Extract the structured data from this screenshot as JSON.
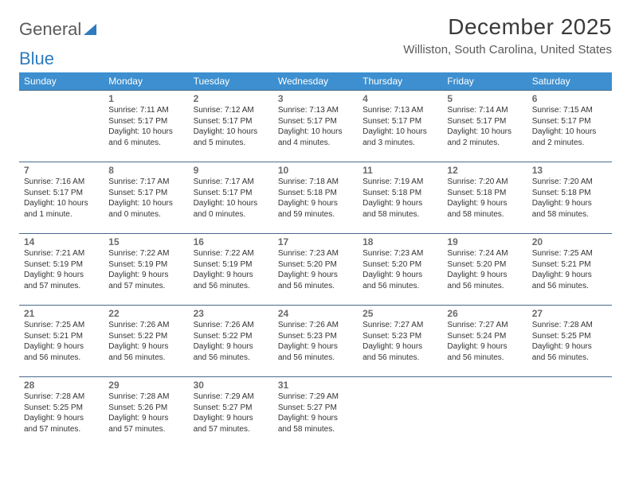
{
  "brand": {
    "part1": "General",
    "part2": "Blue"
  },
  "title": "December 2025",
  "location": "Williston, South Carolina, United States",
  "colors": {
    "header_bg": "#3d8fcf",
    "header_text": "#ffffff",
    "row_border": "#4a6a8a",
    "daynum": "#6a6a6a",
    "body_text": "#333333",
    "brand_gray": "#5a5a5a",
    "brand_blue": "#2f7bbf"
  },
  "weekdays": [
    "Sunday",
    "Monday",
    "Tuesday",
    "Wednesday",
    "Thursday",
    "Friday",
    "Saturday"
  ],
  "weeks": [
    [
      null,
      {
        "n": "1",
        "sr": "7:11 AM",
        "ss": "5:17 PM",
        "dl": "10 hours and 6 minutes."
      },
      {
        "n": "2",
        "sr": "7:12 AM",
        "ss": "5:17 PM",
        "dl": "10 hours and 5 minutes."
      },
      {
        "n": "3",
        "sr": "7:13 AM",
        "ss": "5:17 PM",
        "dl": "10 hours and 4 minutes."
      },
      {
        "n": "4",
        "sr": "7:13 AM",
        "ss": "5:17 PM",
        "dl": "10 hours and 3 minutes."
      },
      {
        "n": "5",
        "sr": "7:14 AM",
        "ss": "5:17 PM",
        "dl": "10 hours and 2 minutes."
      },
      {
        "n": "6",
        "sr": "7:15 AM",
        "ss": "5:17 PM",
        "dl": "10 hours and 2 minutes."
      }
    ],
    [
      {
        "n": "7",
        "sr": "7:16 AM",
        "ss": "5:17 PM",
        "dl": "10 hours and 1 minute."
      },
      {
        "n": "8",
        "sr": "7:17 AM",
        "ss": "5:17 PM",
        "dl": "10 hours and 0 minutes."
      },
      {
        "n": "9",
        "sr": "7:17 AM",
        "ss": "5:17 PM",
        "dl": "10 hours and 0 minutes."
      },
      {
        "n": "10",
        "sr": "7:18 AM",
        "ss": "5:18 PM",
        "dl": "9 hours and 59 minutes."
      },
      {
        "n": "11",
        "sr": "7:19 AM",
        "ss": "5:18 PM",
        "dl": "9 hours and 58 minutes."
      },
      {
        "n": "12",
        "sr": "7:20 AM",
        "ss": "5:18 PM",
        "dl": "9 hours and 58 minutes."
      },
      {
        "n": "13",
        "sr": "7:20 AM",
        "ss": "5:18 PM",
        "dl": "9 hours and 58 minutes."
      }
    ],
    [
      {
        "n": "14",
        "sr": "7:21 AM",
        "ss": "5:19 PM",
        "dl": "9 hours and 57 minutes."
      },
      {
        "n": "15",
        "sr": "7:22 AM",
        "ss": "5:19 PM",
        "dl": "9 hours and 57 minutes."
      },
      {
        "n": "16",
        "sr": "7:22 AM",
        "ss": "5:19 PM",
        "dl": "9 hours and 56 minutes."
      },
      {
        "n": "17",
        "sr": "7:23 AM",
        "ss": "5:20 PM",
        "dl": "9 hours and 56 minutes."
      },
      {
        "n": "18",
        "sr": "7:23 AM",
        "ss": "5:20 PM",
        "dl": "9 hours and 56 minutes."
      },
      {
        "n": "19",
        "sr": "7:24 AM",
        "ss": "5:20 PM",
        "dl": "9 hours and 56 minutes."
      },
      {
        "n": "20",
        "sr": "7:25 AM",
        "ss": "5:21 PM",
        "dl": "9 hours and 56 minutes."
      }
    ],
    [
      {
        "n": "21",
        "sr": "7:25 AM",
        "ss": "5:21 PM",
        "dl": "9 hours and 56 minutes."
      },
      {
        "n": "22",
        "sr": "7:26 AM",
        "ss": "5:22 PM",
        "dl": "9 hours and 56 minutes."
      },
      {
        "n": "23",
        "sr": "7:26 AM",
        "ss": "5:22 PM",
        "dl": "9 hours and 56 minutes."
      },
      {
        "n": "24",
        "sr": "7:26 AM",
        "ss": "5:23 PM",
        "dl": "9 hours and 56 minutes."
      },
      {
        "n": "25",
        "sr": "7:27 AM",
        "ss": "5:23 PM",
        "dl": "9 hours and 56 minutes."
      },
      {
        "n": "26",
        "sr": "7:27 AM",
        "ss": "5:24 PM",
        "dl": "9 hours and 56 minutes."
      },
      {
        "n": "27",
        "sr": "7:28 AM",
        "ss": "5:25 PM",
        "dl": "9 hours and 56 minutes."
      }
    ],
    [
      {
        "n": "28",
        "sr": "7:28 AM",
        "ss": "5:25 PM",
        "dl": "9 hours and 57 minutes."
      },
      {
        "n": "29",
        "sr": "7:28 AM",
        "ss": "5:26 PM",
        "dl": "9 hours and 57 minutes."
      },
      {
        "n": "30",
        "sr": "7:29 AM",
        "ss": "5:27 PM",
        "dl": "9 hours and 57 minutes."
      },
      {
        "n": "31",
        "sr": "7:29 AM",
        "ss": "5:27 PM",
        "dl": "9 hours and 58 minutes."
      },
      null,
      null,
      null
    ]
  ],
  "labels": {
    "sunrise": "Sunrise:",
    "sunset": "Sunset:",
    "daylight": "Daylight:"
  }
}
